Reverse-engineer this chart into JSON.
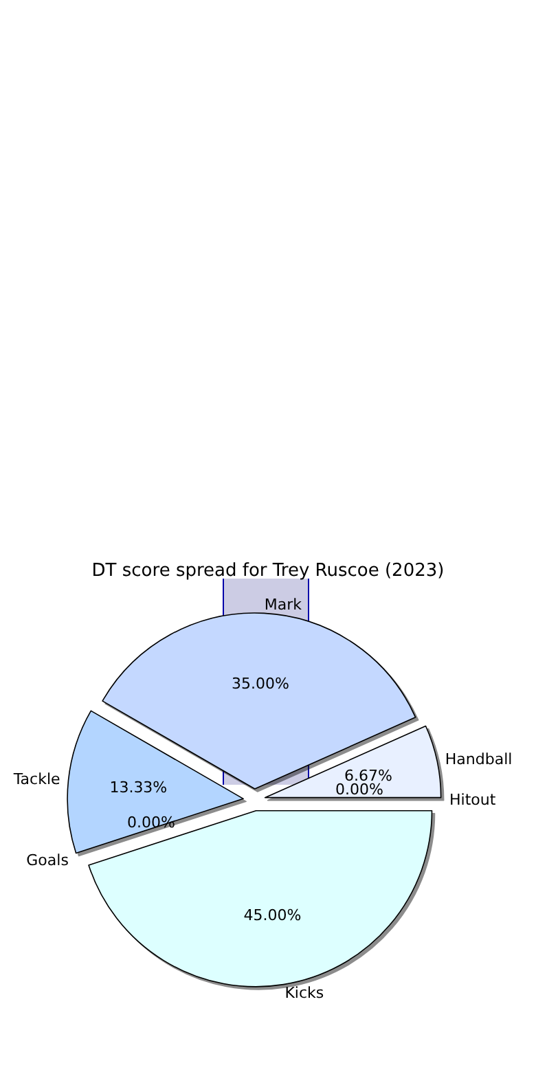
{
  "chart_data": {
    "type": "pie",
    "title": "DT score spread for Trey Ruscoe (2023)",
    "categories": [
      "Hitout",
      "Handball",
      "Mark",
      "Tackle",
      "Goals",
      "Kicks"
    ],
    "values": [
      0,
      6.67,
      35,
      13.33,
      0,
      45
    ],
    "colors": [
      "#e6e6fa",
      "#e8f0ff",
      "#c4d8ff",
      "#b3d5ff",
      "#d0e8ff",
      "#ddffff"
    ],
    "value_labels": [
      "0.00%",
      "6.67%",
      "35.00%",
      "13.33%",
      "0.00%",
      "45.00%"
    ],
    "legend": false
  }
}
